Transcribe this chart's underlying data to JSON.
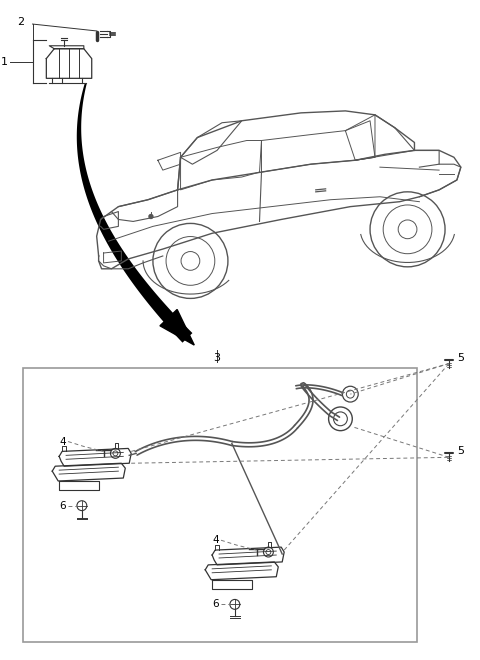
{
  "bg_color": "#ffffff",
  "line_color": "#333333",
  "label_color": "#000000",
  "figsize": [
    4.8,
    6.6
  ],
  "dpi": 100,
  "car_color": "#555555",
  "arrow_color": "#000000",
  "box_color": "#888888",
  "dash_color": "#777777"
}
